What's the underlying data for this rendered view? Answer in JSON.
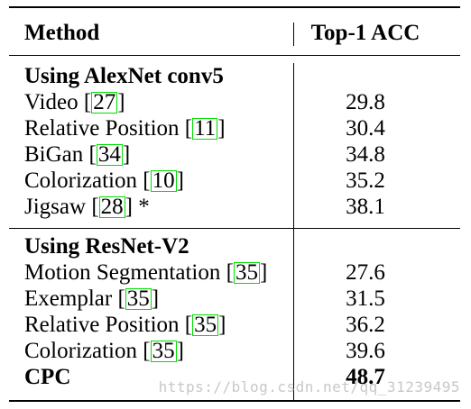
{
  "header": {
    "method": "Method",
    "metric": "Top-1 ACC"
  },
  "sections": [
    {
      "title": "Using AlexNet conv5",
      "rows": [
        {
          "name": "Video",
          "cite": "27",
          "suffix": "",
          "value": "29.8"
        },
        {
          "name": "Relative Position",
          "cite": "11",
          "suffix": "",
          "value": "30.4"
        },
        {
          "name": "BiGan",
          "cite": "34",
          "suffix": "",
          "value": "34.8"
        },
        {
          "name": "Colorization",
          "cite": "10",
          "suffix": "",
          "value": "35.2"
        },
        {
          "name": "Jigsaw",
          "cite": "28",
          "suffix": " *",
          "value": "38.1"
        }
      ]
    },
    {
      "title": "Using ResNet-V2",
      "rows": [
        {
          "name": "Motion Segmentation",
          "cite": "35",
          "suffix": "",
          "value": "27.6"
        },
        {
          "name": "Exemplar",
          "cite": "35",
          "suffix": "",
          "value": "31.5"
        },
        {
          "name": "Relative Position",
          "cite": "35",
          "suffix": "",
          "value": "36.2"
        },
        {
          "name": "Colorization",
          "cite": "35",
          "suffix": "",
          "value": "39.6"
        }
      ]
    }
  ],
  "final_row": {
    "name": "CPC",
    "value": "48.7"
  },
  "watermark": "https://blog.csdn.net/qq_31239495"
}
